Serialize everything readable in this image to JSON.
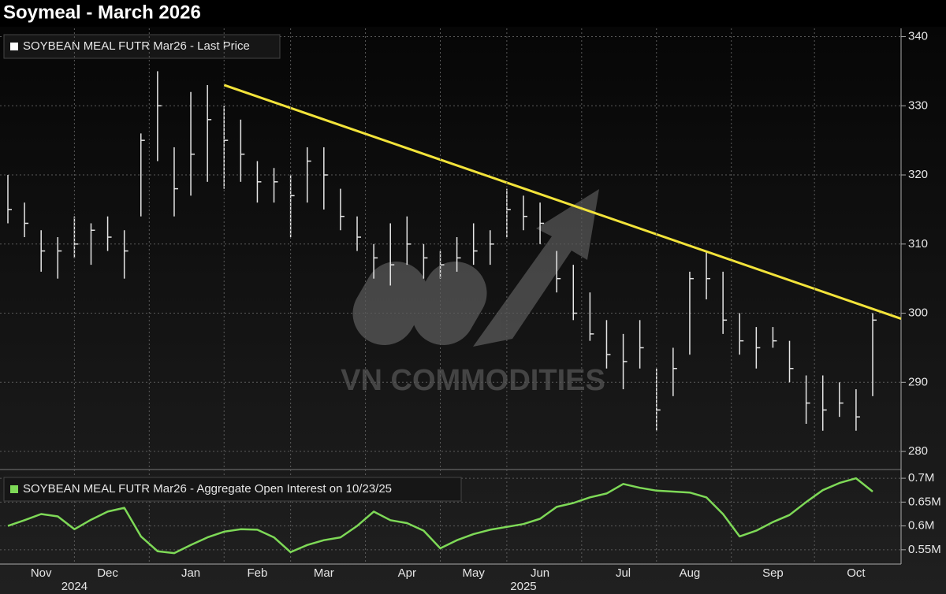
{
  "title": "Soymeal - March 2026",
  "watermark": "VN COMMODITIES",
  "chart_data": [
    {
      "type": "ohlc",
      "series": [
        {
          "name": "SOYBEAN MEAL FUTR Mar26 - Last Price",
          "color": "#e6e6e6",
          "high": [
            320,
            316,
            312,
            311,
            314,
            313,
            314,
            312,
            326,
            335,
            324,
            332,
            333,
            330,
            328,
            322,
            321,
            320,
            324,
            324,
            318,
            314,
            310,
            313,
            314,
            310,
            309,
            311,
            313,
            312,
            318,
            317,
            316,
            309,
            307,
            303,
            299,
            297,
            299,
            292,
            295,
            306,
            309,
            306,
            300,
            298,
            298,
            296,
            291,
            291,
            290,
            289,
            300
          ],
          "low": [
            313,
            311,
            306,
            305,
            308,
            307,
            309,
            305,
            314,
            322,
            314,
            317,
            319,
            318,
            319,
            316,
            316,
            311,
            316,
            315,
            312,
            309,
            305,
            304,
            307,
            305,
            305,
            306,
            307,
            307,
            311,
            312,
            310,
            303,
            299,
            296,
            292,
            289,
            292,
            283,
            288,
            294,
            302,
            297,
            294,
            292,
            295,
            290,
            284,
            283,
            285,
            283,
            288
          ],
          "close": [
            315,
            313,
            309,
            309,
            310,
            312,
            311,
            309,
            325,
            330,
            318,
            323,
            328,
            325,
            323,
            319,
            319,
            317,
            322,
            320,
            314,
            311,
            308,
            307,
            310,
            308,
            307,
            308,
            309,
            310,
            315,
            314,
            313,
            305,
            300,
            297,
            294,
            293,
            295,
            286,
            292,
            305,
            305,
            299,
            296,
            295,
            296,
            292,
            287,
            286,
            287,
            285,
            299
          ]
        }
      ],
      "ylim": [
        277.5,
        341.2
      ],
      "yticks": [
        280,
        290,
        300,
        310,
        320,
        330,
        340
      ],
      "grid": true,
      "trend_line": {
        "color": "#f2e33a",
        "values": [
          333,
          299.2
        ]
      }
    },
    {
      "type": "line",
      "categories": [
        null,
        null,
        "Nov",
        null,
        null,
        null,
        "Dec",
        null,
        null,
        null,
        null,
        "Jan",
        null,
        null,
        null,
        "Feb",
        null,
        null,
        null,
        "Mar",
        null,
        null,
        null,
        null,
        "Apr",
        null,
        null,
        null,
        "May",
        null,
        null,
        null,
        "Jun",
        null,
        null,
        null,
        null,
        "Jul",
        null,
        null,
        null,
        "Aug",
        null,
        null,
        null,
        null,
        "Sep",
        null,
        null,
        null,
        null,
        "Oct",
        null
      ],
      "category_years": [
        null,
        null,
        null,
        null,
        "2024",
        null,
        null,
        null,
        null,
        null,
        null,
        null,
        null,
        null,
        null,
        null,
        null,
        null,
        null,
        null,
        null,
        null,
        null,
        null,
        null,
        null,
        null,
        null,
        null,
        null,
        null,
        "2025",
        null,
        null,
        null,
        null,
        null,
        null,
        null,
        null,
        null,
        null,
        null,
        null,
        null,
        null,
        null,
        null,
        null,
        null,
        null,
        null,
        null
      ],
      "series": [
        {
          "name": "SOYBEAN MEAL FUTR Mar26 - Aggregate Open Interest on 10/23/25",
          "color": "#7ed957",
          "values": [
            600000,
            612000,
            625000,
            620000,
            593000,
            613000,
            630000,
            638000,
            578000,
            547000,
            543000,
            560000,
            576000,
            588000,
            593000,
            592000,
            576000,
            545000,
            560000,
            570000,
            576000,
            600000,
            630000,
            612000,
            606000,
            590000,
            553000,
            570000,
            583000,
            592000,
            598000,
            604000,
            615000,
            640000,
            648000,
            660000,
            668000,
            688000,
            680000,
            674000,
            672000,
            670000,
            660000,
            625000,
            578000,
            590000,
            608000,
            623000,
            650000,
            675000,
            690000,
            700000,
            672000
          ]
        }
      ],
      "ylim": [
        520000,
        715000
      ],
      "yticks": [
        {
          "value": 550000,
          "label": "0.55M"
        },
        {
          "value": 600000,
          "label": "0.6M"
        },
        {
          "value": 650000,
          "label": "0.65M"
        },
        {
          "value": 700000,
          "label": "0.7M"
        }
      ],
      "grid": true
    }
  ]
}
